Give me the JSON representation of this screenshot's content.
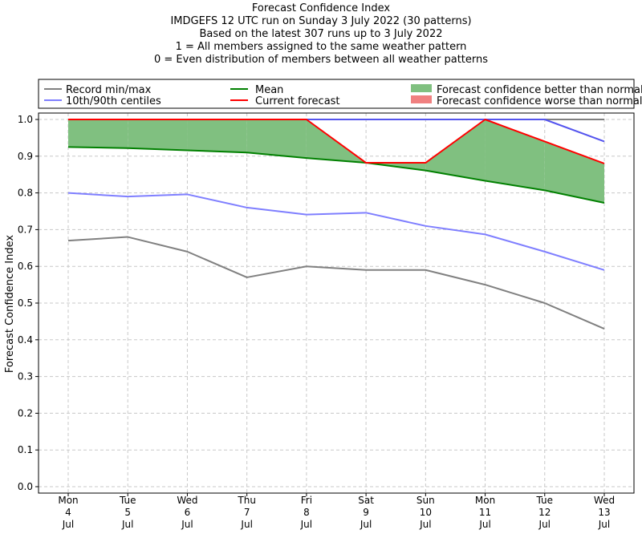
{
  "chart_data": {
    "type": "line",
    "title_lines": [
      "Forecast Confidence Index",
      "IMDGEFS 12 UTC run on Sunday 3 July 2022 (30 patterns)",
      "Based on the latest 307 runs up to 3 July 2022",
      "1 = All members assigned to the same weather pattern",
      "0 = Even distribution of members between all weather patterns"
    ],
    "xlabel": "",
    "ylabel": "Forecast Confidence Index",
    "ylim": [
      0,
      1.0
    ],
    "yticks": [
      "0.0",
      "0.1",
      "0.2",
      "0.3",
      "0.4",
      "0.5",
      "0.6",
      "0.7",
      "0.8",
      "0.9",
      "1.0"
    ],
    "grid": true,
    "legend_position": "top",
    "categories": [
      [
        "Mon",
        "4",
        "Jul"
      ],
      [
        "Tue",
        "5",
        "Jul"
      ],
      [
        "Wed",
        "6",
        "Jul"
      ],
      [
        "Thu",
        "7",
        "Jul"
      ],
      [
        "Fri",
        "8",
        "Jul"
      ],
      [
        "Sat",
        "9",
        "Jul"
      ],
      [
        "Sun",
        "10",
        "Jul"
      ],
      [
        "Mon",
        "11",
        "Jul"
      ],
      [
        "Tue",
        "12",
        "Jul"
      ],
      [
        "Wed",
        "13",
        "Jul"
      ]
    ],
    "series": [
      {
        "name": "Record min/max",
        "role": "record_min",
        "color": "#808080",
        "values": [
          0.67,
          0.68,
          0.64,
          0.57,
          0.6,
          0.59,
          0.59,
          0.55,
          0.5,
          0.43
        ]
      },
      {
        "name": "Record min/max",
        "role": "record_max",
        "color": "#808080",
        "values": [
          1.0,
          1.0,
          1.0,
          1.0,
          1.0,
          1.0,
          1.0,
          1.0,
          1.0,
          1.0
        ]
      },
      {
        "name": "10th/90th centiles",
        "role": "p10",
        "color": "#7f7fff",
        "values": [
          0.8,
          0.79,
          0.796,
          0.76,
          0.741,
          0.746,
          0.71,
          0.687,
          0.64,
          0.59
        ]
      },
      {
        "name": "10th/90th centiles",
        "role": "p90",
        "color": "#5555ee",
        "values": [
          1.0,
          1.0,
          1.0,
          1.0,
          1.0,
          1.0,
          1.0,
          1.0,
          1.0,
          0.94
        ]
      },
      {
        "name": "Mean",
        "role": "mean",
        "color": "#008000",
        "values": [
          0.925,
          0.922,
          0.916,
          0.91,
          0.895,
          0.882,
          0.861,
          0.833,
          0.807,
          0.773
        ]
      },
      {
        "name": "Current forecast",
        "role": "current",
        "color": "#ff0000",
        "values": [
          1.0,
          1.0,
          1.0,
          1.0,
          1.0,
          0.882,
          0.882,
          1.0,
          0.94,
          0.88
        ]
      }
    ],
    "legend": [
      {
        "label": "Record min/max",
        "kind": "line",
        "color": "#808080"
      },
      {
        "label": "10th/90th centiles",
        "kind": "line",
        "color": "#7f7fff"
      },
      {
        "label": "Mean",
        "kind": "line",
        "color": "#008000"
      },
      {
        "label": "Current forecast",
        "kind": "line",
        "color": "#ff0000"
      },
      {
        "label": "Forecast confidence better than normal",
        "kind": "patch",
        "color": "#80c080"
      },
      {
        "label": "Forecast confidence worse than normal",
        "kind": "patch",
        "color": "#f08080"
      }
    ],
    "colors": {
      "better_fill": "#80c080",
      "worse_fill": "#f08080"
    }
  }
}
